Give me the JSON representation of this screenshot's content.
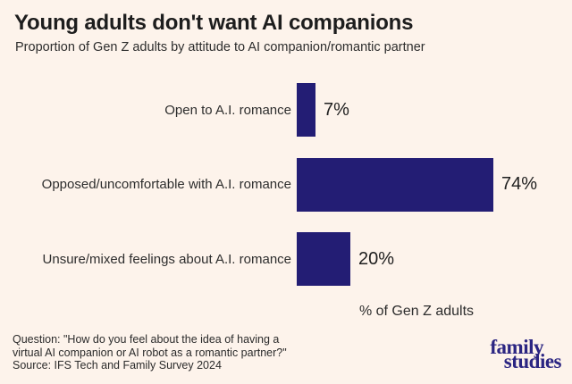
{
  "header": {
    "title": "Young adults don't want AI companions",
    "subtitle": "Proportion of Gen Z adults by attitude to AI companion/romantic partner"
  },
  "chart_data": {
    "type": "bar",
    "orientation": "horizontal",
    "categories": [
      "Open to A.I. romance",
      "Opposed/uncomfortable with A.I. romance",
      "Unsure/mixed feelings about A.I. romance"
    ],
    "values": [
      7,
      74,
      20
    ],
    "value_labels": [
      "7%",
      "74%",
      "20%"
    ],
    "title": "Young adults don't want AI companions",
    "subtitle": "Proportion of Gen Z adults by attitude to AI companion/romantic partner",
    "xlabel": "% of Gen Z adults",
    "ylabel": "",
    "xlim": [
      0,
      90
    ],
    "grid": false,
    "legend": false
  },
  "footer": {
    "note_line1": "Question: \"How do you feel about the idea of having a",
    "note_line2": "virtual AI companion or AI robot as a romantic partner?\"",
    "note_line3": "Source: IFS Tech and Family Survey 2024",
    "logo_line1": "family",
    "logo_line2": "studies"
  },
  "colors": {
    "background": "#fdf3eb",
    "bar": "#231d74",
    "title": "#1d1d1d",
    "text": "#2d2d2d",
    "logo": "#2b2582"
  }
}
